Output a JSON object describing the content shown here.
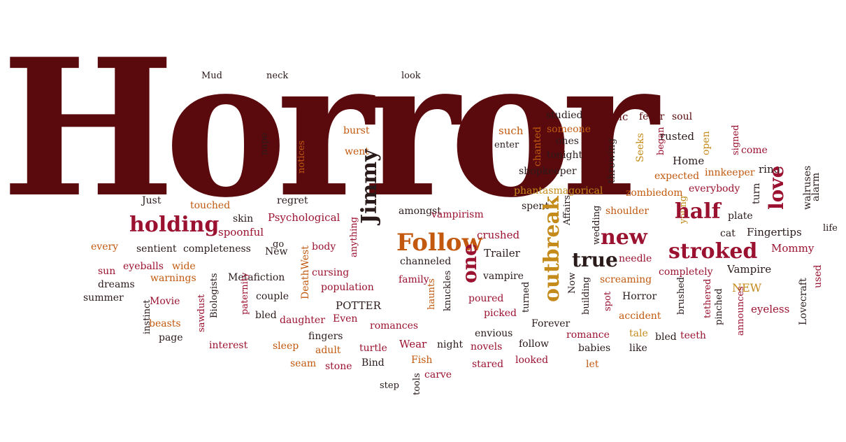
{
  "palette": {
    "maroon": "#5a0a0d",
    "crimson": "#9b1230",
    "orange": "#c2590f",
    "gold": "#c48a1a",
    "dark": "#2a1a1a"
  },
  "title": "Horror",
  "words": [
    {
      "text": "Mud",
      "color": "dark",
      "size": 13
    },
    {
      "text": "neck",
      "color": "dark",
      "size": 13
    },
    {
      "text": "look",
      "color": "dark",
      "size": 13
    },
    {
      "text": "studied",
      "color": "dark",
      "size": 14
    },
    {
      "text": "Erotic",
      "color": "maroon",
      "size": 15
    },
    {
      "text": "fever",
      "color": "maroon",
      "size": 14
    },
    {
      "text": "soul",
      "color": "maroon",
      "size": 14
    },
    {
      "text": "someone",
      "color": "orange",
      "size": 14
    },
    {
      "text": "ones",
      "color": "dark",
      "size": 14
    },
    {
      "text": "such",
      "color": "orange",
      "size": 15
    },
    {
      "text": "chanted",
      "color": "orange",
      "size": 14
    },
    {
      "text": "burst",
      "color": "orange",
      "size": 14
    },
    {
      "text": "nape",
      "color": "dark",
      "size": 13
    },
    {
      "text": "notices",
      "color": "orange",
      "size": 13
    },
    {
      "text": "went",
      "color": "orange",
      "size": 14
    },
    {
      "text": "enter",
      "color": "dark",
      "size": 13
    },
    {
      "text": "tonight",
      "color": "dark",
      "size": 14
    },
    {
      "text": "throwing",
      "color": "dark",
      "size": 14
    },
    {
      "text": "Seeks",
      "color": "gold",
      "size": 14
    },
    {
      "text": "began",
      "color": "crimson",
      "size": 13
    },
    {
      "text": "rusted",
      "color": "dark",
      "size": 15
    },
    {
      "text": "open",
      "color": "gold",
      "size": 14
    },
    {
      "text": "signed",
      "color": "crimson",
      "size": 13
    },
    {
      "text": "come",
      "color": "crimson",
      "size": 14
    },
    {
      "text": "Home",
      "color": "dark",
      "size": 15
    },
    {
      "text": "expected",
      "color": "orange",
      "size": 14
    },
    {
      "text": "innkeeper",
      "color": "orange",
      "size": 14
    },
    {
      "text": "ring",
      "color": "dark",
      "size": 15
    },
    {
      "text": "shopkeeper",
      "color": "dark",
      "size": 14
    },
    {
      "text": "turn",
      "color": "dark",
      "size": 14
    },
    {
      "text": "walruses",
      "color": "dark",
      "size": 14
    },
    {
      "text": "phantasmagorical",
      "color": "gold",
      "size": 14
    },
    {
      "text": "zombiedom",
      "color": "orange",
      "size": 14
    },
    {
      "text": "everybody",
      "color": "crimson",
      "size": 14
    },
    {
      "text": "love",
      "color": "crimson",
      "size": 28,
      "bold": true
    },
    {
      "text": "alarm",
      "color": "dark",
      "size": 14
    },
    {
      "text": "Just",
      "color": "dark",
      "size": 14
    },
    {
      "text": "regret",
      "color": "dark",
      "size": 14
    },
    {
      "text": "touched",
      "color": "orange",
      "size": 14
    },
    {
      "text": "amongst",
      "color": "dark",
      "size": 14
    },
    {
      "text": "spent",
      "color": "dark",
      "size": 14
    },
    {
      "text": "Affairs",
      "color": "dark",
      "size": 13
    },
    {
      "text": "shoulder",
      "color": "orange",
      "size": 14
    },
    {
      "text": "young",
      "color": "gold",
      "size": 13
    },
    {
      "text": "half",
      "color": "crimson",
      "size": 30,
      "bold": true
    },
    {
      "text": "plate",
      "color": "dark",
      "size": 14
    },
    {
      "text": "holding",
      "color": "crimson",
      "size": 30,
      "bold": true
    },
    {
      "text": "skin",
      "color": "dark",
      "size": 14
    },
    {
      "text": "Psychological",
      "color": "crimson",
      "size": 15
    },
    {
      "text": "Jimmy",
      "color": "dark",
      "size": 30,
      "bold": true
    },
    {
      "text": "vampirism",
      "color": "crimson",
      "size": 14
    },
    {
      "text": "wedding",
      "color": "dark",
      "size": 13
    },
    {
      "text": "new",
      "color": "crimson",
      "size": 30,
      "bold": true
    },
    {
      "text": "Fingertips",
      "color": "dark",
      "size": 15
    },
    {
      "text": "spoonful",
      "color": "crimson",
      "size": 15
    },
    {
      "text": "Follow",
      "color": "orange",
      "size": 34,
      "bold": true
    },
    {
      "text": "crushed",
      "color": "crimson",
      "size": 15
    },
    {
      "text": "outbreak",
      "color": "gold",
      "size": 30,
      "bold": true
    },
    {
      "text": "cat",
      "color": "dark",
      "size": 14
    },
    {
      "text": "life",
      "color": "dark",
      "size": 13
    },
    {
      "text": "every",
      "color": "orange",
      "size": 14
    },
    {
      "text": "go",
      "color": "dark",
      "size": 13
    },
    {
      "text": "sentient",
      "color": "dark",
      "size": 14
    },
    {
      "text": "completeness",
      "color": "dark",
      "size": 14
    },
    {
      "text": "New",
      "color": "dark",
      "size": 14
    },
    {
      "text": "DeathWest",
      "color": "orange",
      "size": 14
    },
    {
      "text": "body",
      "color": "crimson",
      "size": 14
    },
    {
      "text": "anything",
      "color": "crimson",
      "size": 13
    },
    {
      "text": "Trailer",
      "color": "dark",
      "size": 15
    },
    {
      "text": "stroked",
      "color": "crimson",
      "size": 30,
      "bold": true
    },
    {
      "text": "Mommy",
      "color": "crimson",
      "size": 15
    },
    {
      "text": "eyeballs",
      "color": "crimson",
      "size": 14
    },
    {
      "text": "wide",
      "color": "orange",
      "size": 14
    },
    {
      "text": "channeled",
      "color": "dark",
      "size": 14
    },
    {
      "text": "one",
      "color": "crimson",
      "size": 28,
      "bold": true
    },
    {
      "text": "true",
      "color": "dark",
      "size": 28,
      "bold": true
    },
    {
      "text": "needle",
      "color": "crimson",
      "size": 14
    },
    {
      "text": "sun",
      "color": "crimson",
      "size": 14
    },
    {
      "text": "warnings",
      "color": "orange",
      "size": 14
    },
    {
      "text": "Metafiction",
      "color": "dark",
      "size": 14
    },
    {
      "text": "cursing",
      "color": "crimson",
      "size": 14
    },
    {
      "text": "vampire",
      "color": "dark",
      "size": 14
    },
    {
      "text": "completely",
      "color": "crimson",
      "size": 14
    },
    {
      "text": "Vampire",
      "color": "dark",
      "size": 15
    },
    {
      "text": "used",
      "color": "crimson",
      "size": 14
    },
    {
      "text": "dreams",
      "color": "dark",
      "size": 14
    },
    {
      "text": "family",
      "color": "crimson",
      "size": 14
    },
    {
      "text": "Now",
      "color": "dark",
      "size": 13
    },
    {
      "text": "screaming",
      "color": "orange",
      "size": 14
    },
    {
      "text": "NEW",
      "color": "gold",
      "size": 16
    },
    {
      "text": "Lovecraft",
      "color": "dark",
      "size": 14
    },
    {
      "text": "summer",
      "color": "dark",
      "size": 14
    },
    {
      "text": "Biologists",
      "color": "dark",
      "size": 13
    },
    {
      "text": "paternity",
      "color": "crimson",
      "size": 13
    },
    {
      "text": "couple",
      "color": "dark",
      "size": 14
    },
    {
      "text": "population",
      "color": "crimson",
      "size": 14
    },
    {
      "text": "POTTER",
      "color": "dark",
      "size": 15
    },
    {
      "text": "knuckles",
      "color": "dark",
      "size": 13
    },
    {
      "text": "poured",
      "color": "crimson",
      "size": 14
    },
    {
      "text": "turned",
      "color": "dark",
      "size": 13
    },
    {
      "text": "spot",
      "color": "crimson",
      "size": 13
    },
    {
      "text": "Horror",
      "color": "dark",
      "size": 14
    },
    {
      "text": "brushed",
      "color": "dark",
      "size": 13
    },
    {
      "text": "tethered",
      "color": "crimson",
      "size": 13
    },
    {
      "text": "eyeless",
      "color": "crimson",
      "size": 15
    },
    {
      "text": "instinct",
      "color": "dark",
      "size": 13
    },
    {
      "text": "Movie",
      "color": "crimson",
      "size": 14
    },
    {
      "text": "sawdust",
      "color": "crimson",
      "size": 13
    },
    {
      "text": "bled",
      "color": "dark",
      "size": 14
    },
    {
      "text": "daughter",
      "color": "crimson",
      "size": 14
    },
    {
      "text": "Even",
      "color": "crimson",
      "size": 14
    },
    {
      "text": "haunts",
      "color": "orange",
      "size": 13
    },
    {
      "text": "picked",
      "color": "crimson",
      "size": 14
    },
    {
      "text": "building",
      "color": "dark",
      "size": 13
    },
    {
      "text": "accident",
      "color": "orange",
      "size": 14
    },
    {
      "text": "pinched",
      "color": "dark",
      "size": 13
    },
    {
      "text": "announces",
      "color": "crimson",
      "size": 13
    },
    {
      "text": "beasts",
      "color": "orange",
      "size": 14
    },
    {
      "text": "romances",
      "color": "crimson",
      "size": 14
    },
    {
      "text": "envious",
      "color": "dark",
      "size": 14
    },
    {
      "text": "Forever",
      "color": "dark",
      "size": 14
    },
    {
      "text": "tale",
      "color": "gold",
      "size": 14
    },
    {
      "text": "bled",
      "color": "dark",
      "size": 14
    },
    {
      "text": "teeth",
      "color": "crimson",
      "size": 14
    },
    {
      "text": "page",
      "color": "dark",
      "size": 14
    },
    {
      "text": "fingers",
      "color": "dark",
      "size": 14
    },
    {
      "text": "romance",
      "color": "crimson",
      "size": 14
    },
    {
      "text": "interest",
      "color": "crimson",
      "size": 14
    },
    {
      "text": "sleep",
      "color": "orange",
      "size": 14
    },
    {
      "text": "adult",
      "color": "orange",
      "size": 14
    },
    {
      "text": "turtle",
      "color": "crimson",
      "size": 14
    },
    {
      "text": "Wear",
      "color": "crimson",
      "size": 15
    },
    {
      "text": "night",
      "color": "dark",
      "size": 14
    },
    {
      "text": "novels",
      "color": "crimson",
      "size": 14
    },
    {
      "text": "follow",
      "color": "dark",
      "size": 14
    },
    {
      "text": "babies",
      "color": "dark",
      "size": 14
    },
    {
      "text": "like",
      "color": "dark",
      "size": 14
    },
    {
      "text": "seam",
      "color": "orange",
      "size": 14
    },
    {
      "text": "stone",
      "color": "crimson",
      "size": 14
    },
    {
      "text": "Bind",
      "color": "dark",
      "size": 14
    },
    {
      "text": "Fish",
      "color": "orange",
      "size": 14
    },
    {
      "text": "stared",
      "color": "crimson",
      "size": 14
    },
    {
      "text": "looked",
      "color": "crimson",
      "size": 14
    },
    {
      "text": "let",
      "color": "orange",
      "size": 14
    },
    {
      "text": "carve",
      "color": "crimson",
      "size": 14
    },
    {
      "text": "step",
      "color": "dark",
      "size": 13
    },
    {
      "text": "tools",
      "color": "dark",
      "size": 13
    }
  ]
}
